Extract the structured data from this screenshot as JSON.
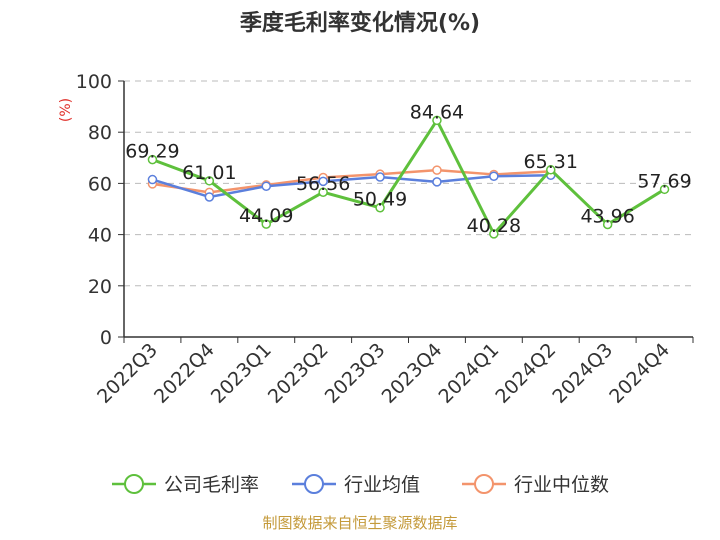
{
  "chart_data": {
    "type": "line",
    "title": "季度毛利率变化情况(%)",
    "ylabel": "(%)",
    "categories": [
      "2022Q3",
      "2022Q4",
      "2023Q1",
      "2023Q2",
      "2023Q3",
      "2023Q4",
      "2024Q1",
      "2024Q2",
      "2024Q3",
      "2024Q4"
    ],
    "ylim": [
      0,
      100
    ],
    "yticks": [
      0,
      20,
      40,
      60,
      80,
      100
    ],
    "grid": true,
    "legend_position": "bottom",
    "series": [
      {
        "name": "公司毛利率",
        "color": "#5ec03c",
        "values": [
          69.29,
          61.01,
          44.09,
          56.56,
          50.49,
          84.64,
          40.28,
          65.31,
          43.96,
          57.69
        ],
        "labels": [
          "69.29",
          "61.01",
          "44.09",
          "56.56",
          "50.49",
          "84.64",
          "40.28",
          "65.31",
          "43.96",
          "57.69"
        ]
      },
      {
        "name": "行业均值",
        "color": "#5b7fdc",
        "values": [
          61.5,
          54.7,
          58.9,
          60.8,
          62.5,
          60.6,
          62.8,
          63.2,
          null,
          null
        ]
      },
      {
        "name": "行业中位数",
        "color": "#f3946c",
        "values": [
          59.8,
          56.5,
          59.4,
          62.3,
          63.6,
          65.2,
          63.5,
          64.7,
          null,
          null
        ]
      }
    ]
  },
  "source": "制图数据来自恒生聚源数据库"
}
